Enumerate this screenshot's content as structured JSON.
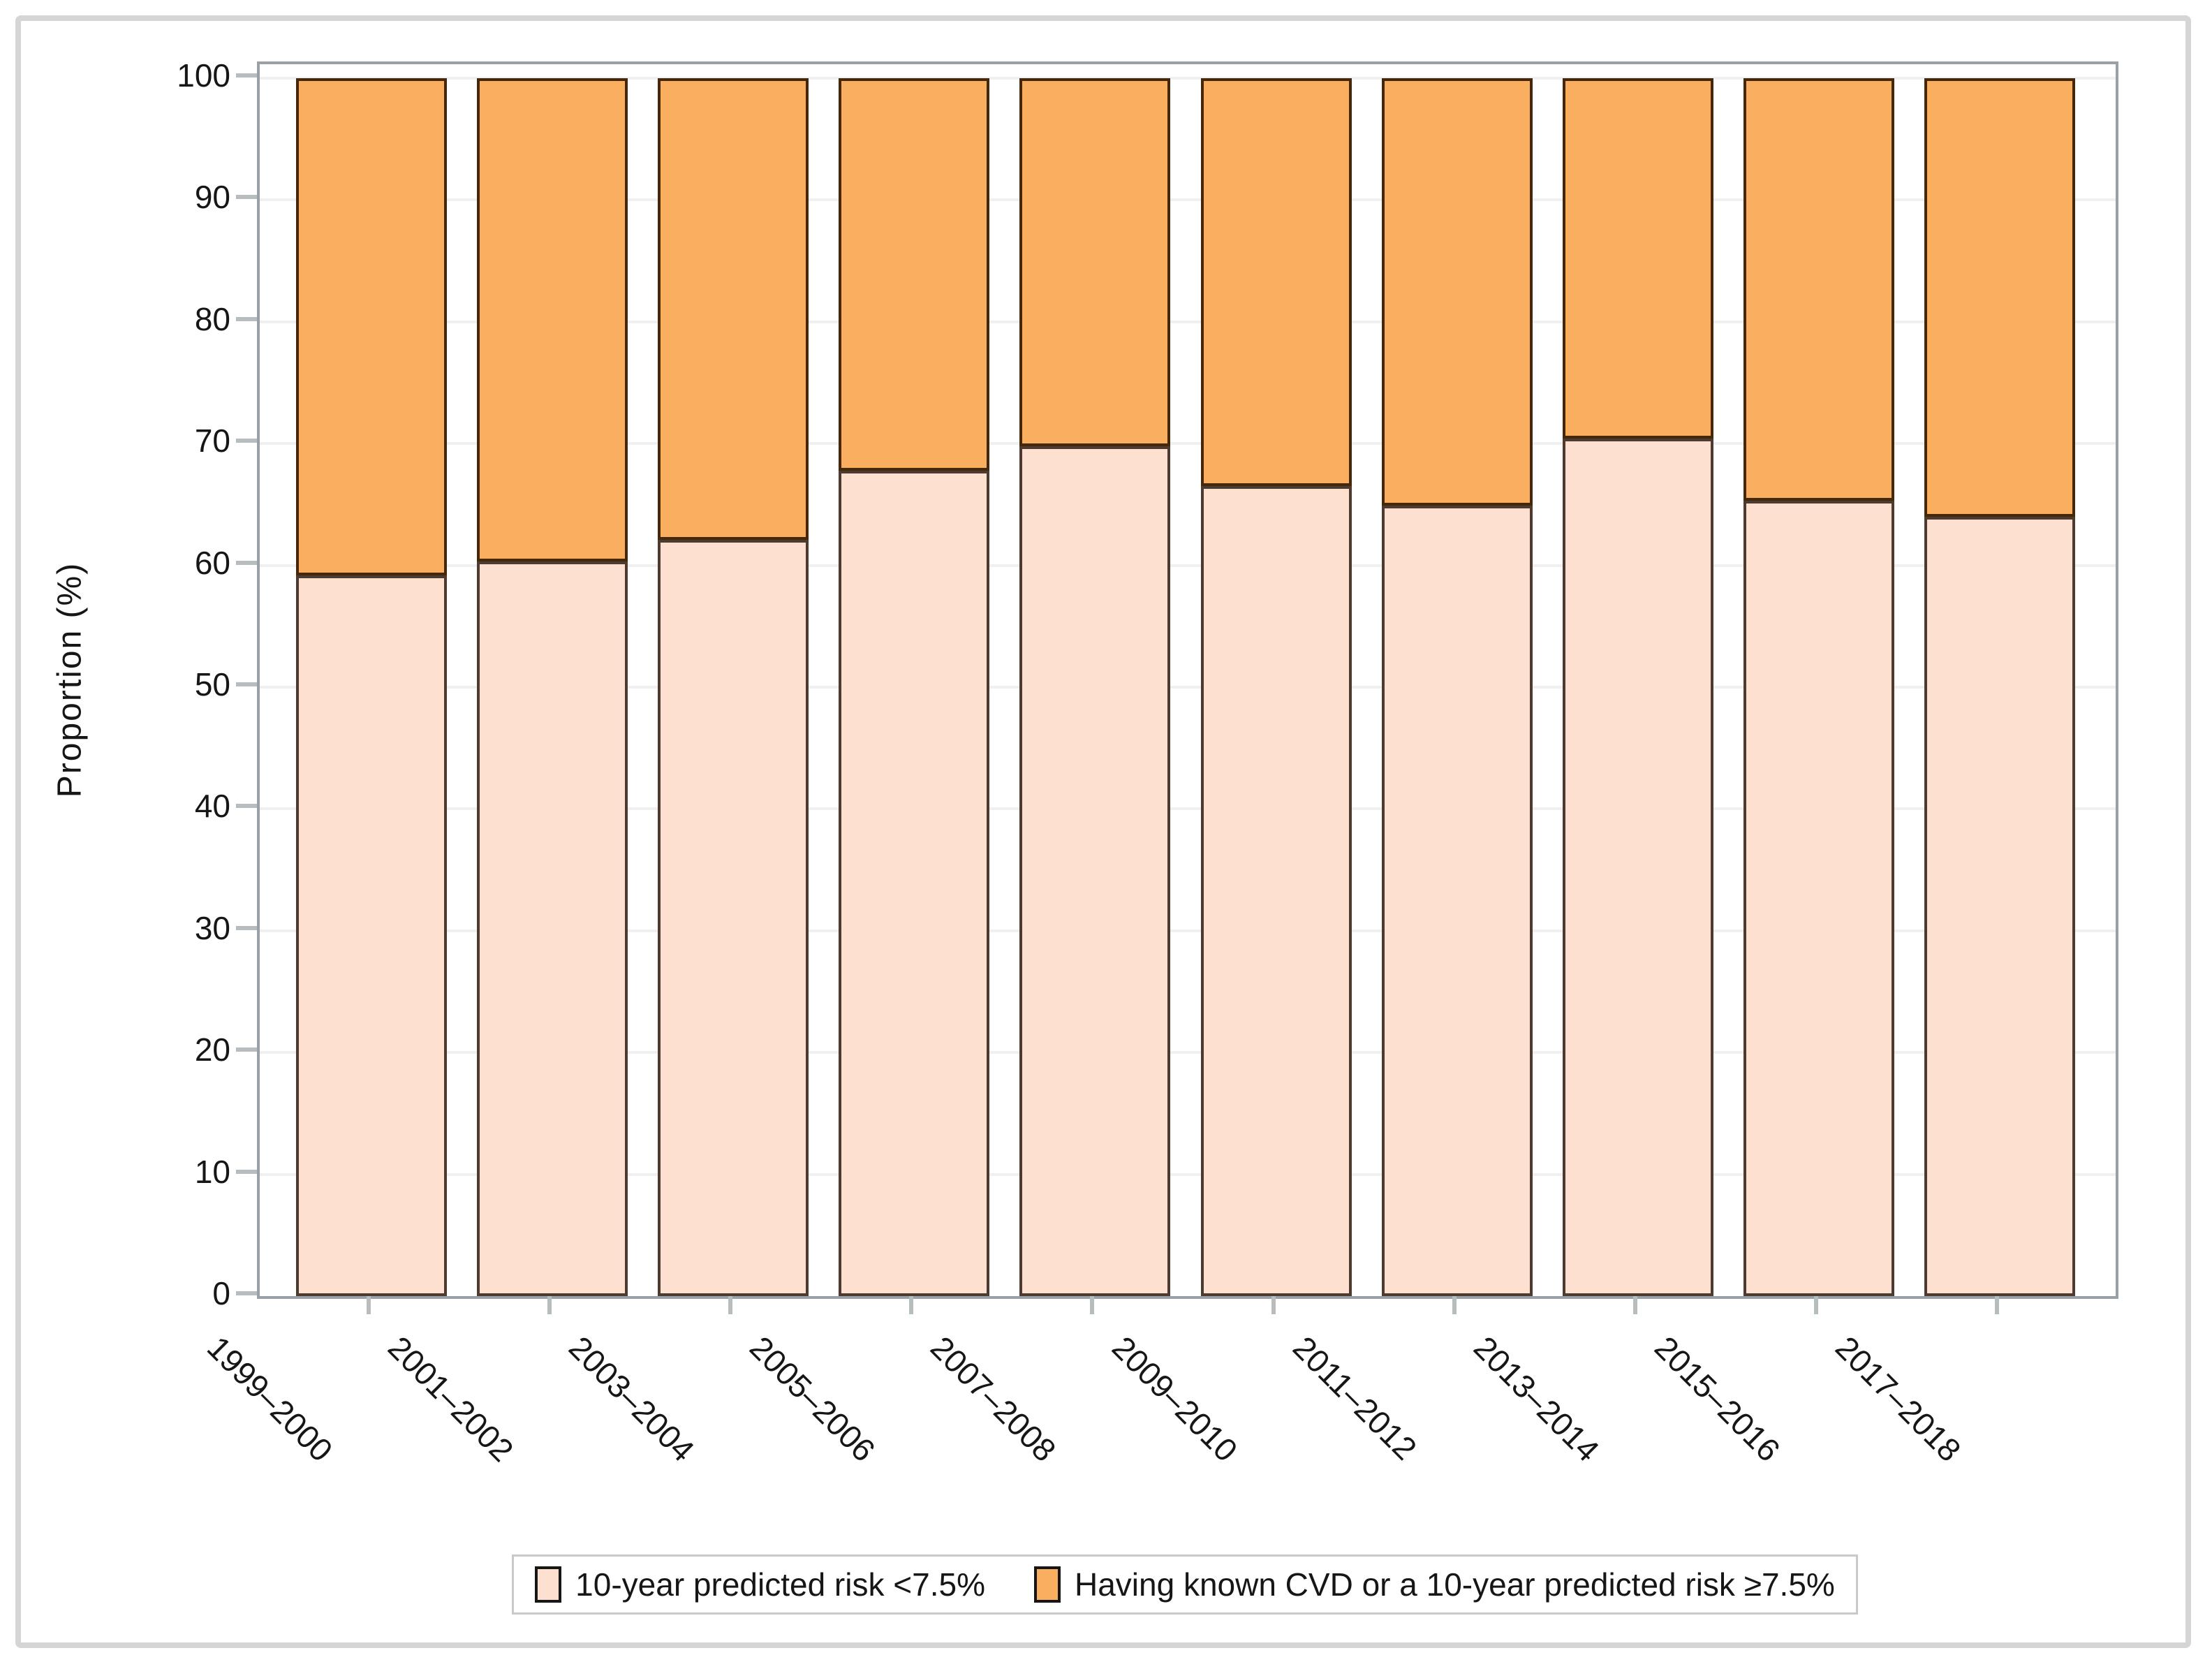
{
  "figure": {
    "background": "#ffffff",
    "outer_border_color": "#d5d5d5",
    "wall_border_color": "#99a1a6",
    "gridline_color": "#f0f0f0",
    "tick_color": "#b7bcbe",
    "text_color": "#161616"
  },
  "axis": {
    "y_title": "Proportion (%)"
  },
  "legend": {
    "position": "bottom-center",
    "border_color": "#c9c9c9",
    "items": [
      {
        "label": "10-year predicted risk <7.5%",
        "fill": "#FDE0D0",
        "border": "#4e3b30"
      },
      {
        "label": "Having known CVD or a 10-year predicted risk ≥7.5%",
        "fill": "#FAAE60",
        "border": "#45280a"
      }
    ]
  },
  "chart_data": {
    "type": "bar",
    "subtype": "stacked-vertical",
    "title": "",
    "xlabel": "",
    "ylabel": "Proportion (%)",
    "ylim": [
      0,
      100
    ],
    "yticks": [
      0,
      10,
      20,
      30,
      40,
      50,
      60,
      70,
      80,
      90,
      100
    ],
    "grid": true,
    "legend_position": "bottom",
    "categories": [
      "1999–2000",
      "2001–2002",
      "2003–2004",
      "2005–2006",
      "2007–2008",
      "2009–2010",
      "2011–2012",
      "2013–2014",
      "2015–2016",
      "2017–2018"
    ],
    "series": [
      {
        "name": "10-year predicted risk <7.5%",
        "fill": "#FDE0D0",
        "border": "#4e3b30",
        "values": [
          59.2,
          60.3,
          62.1,
          67.8,
          69.8,
          66.5,
          64.9,
          70.4,
          65.3,
          64.0
        ]
      },
      {
        "name": "Having known CVD or a 10-year predicted risk ≥7.5%",
        "fill": "#FAAE60",
        "border": "#45280a",
        "values": [
          40.8,
          39.7,
          37.9,
          32.2,
          30.2,
          33.5,
          35.1,
          29.6,
          34.7,
          36.0
        ]
      }
    ]
  }
}
